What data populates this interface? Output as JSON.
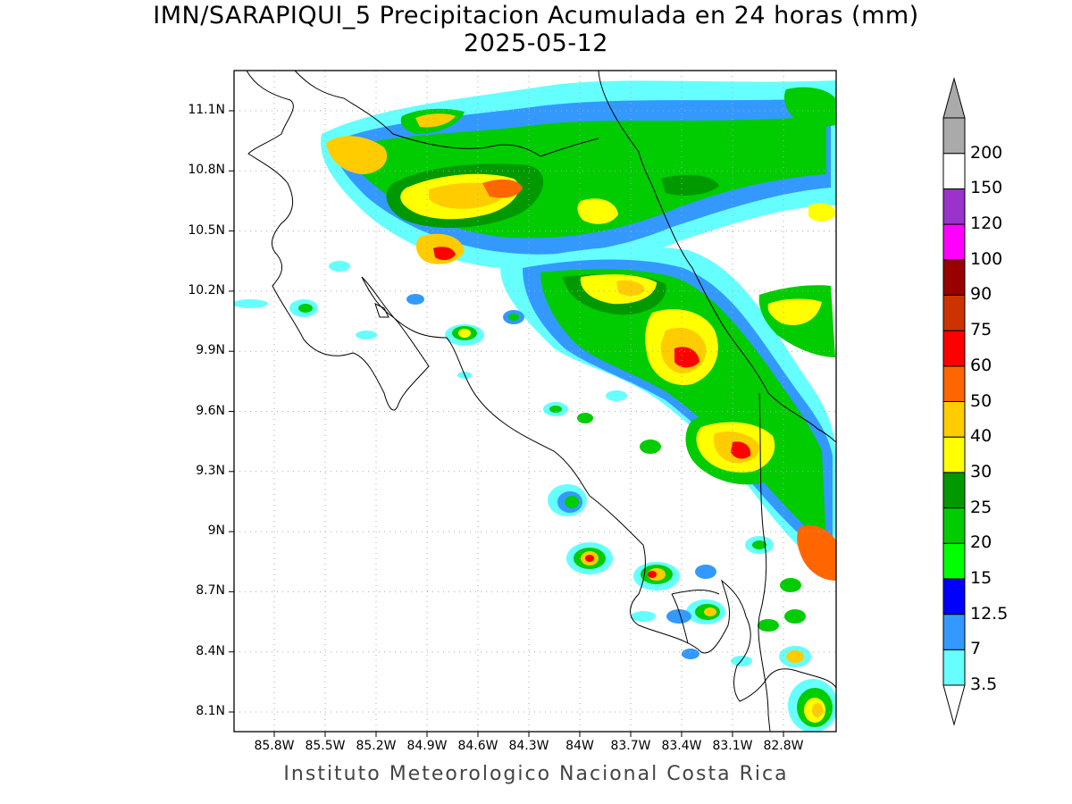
{
  "title": "IMN/SARAPIQUI_5 Precipitacion Acumulada en 24 horas (mm)",
  "date": "2025-05-12",
  "footer": "Instituto Meteorologico Nacional Costa Rica",
  "axes": {
    "lat_labels": [
      "11.1N",
      "10.8N",
      "10.5N",
      "10.2N",
      "9.9N",
      "9.6N",
      "9.3N",
      "9N",
      "8.7N",
      "8.4N",
      "8.1N"
    ],
    "lon_labels": [
      "85.8W",
      "85.5W",
      "85.2W",
      "84.9W",
      "84.6W",
      "84.3W",
      "84W",
      "83.7W",
      "83.4W",
      "83.1W",
      "82.8W"
    ]
  },
  "colorbar": {
    "levels": [
      "3.5",
      "7",
      "12.5",
      "15",
      "20",
      "25",
      "30",
      "40",
      "50",
      "60",
      "75",
      "90",
      "100",
      "120",
      "150",
      "200"
    ],
    "colors": [
      "#66ffff",
      "#3399ff",
      "#0000ff",
      "#00ff00",
      "#00cc00",
      "#009900",
      "#ffff00",
      "#ffcc00",
      "#ff6600",
      "#ff0000",
      "#cc3300",
      "#990000",
      "#ff00ff",
      "#9933cc",
      "#ffffff",
      "#aaaaaa"
    ],
    "under_color": "#ffffff",
    "over_color": "#aaaaaa"
  },
  "colors": {
    "frame": "#000000",
    "grid": "#aaaaaa",
    "coast": "#000000"
  }
}
